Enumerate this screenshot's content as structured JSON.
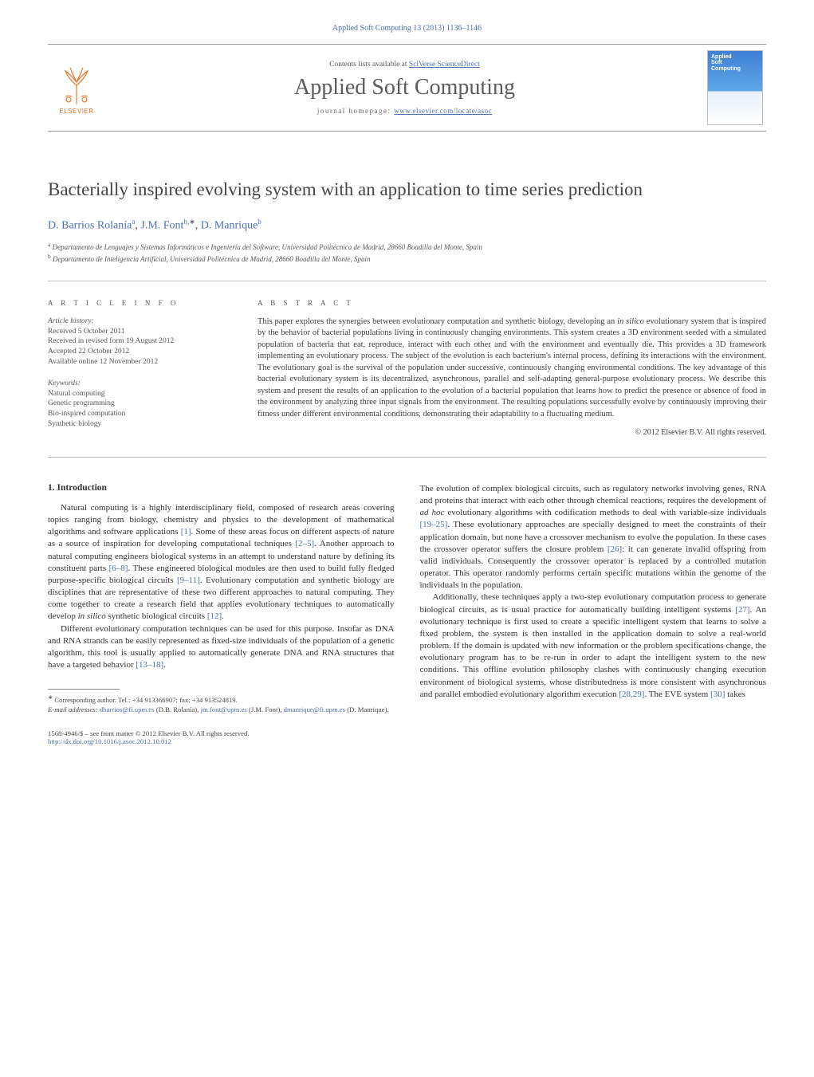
{
  "header": {
    "citation": "Applied Soft Computing 13 (2013) 1136–1146",
    "contents_prefix": "Contents lists available at ",
    "contents_link": "SciVerse ScienceDirect",
    "journal_name": "Applied Soft Computing",
    "homepage_prefix": "journal homepage: ",
    "homepage_url": "www.elsevier.com/locate/asoc",
    "publisher_name": "ELSEVIER",
    "cover_text": "Applied\nSoft\nComputing"
  },
  "article": {
    "title": "Bacterially inspired evolving system with an application to time series prediction",
    "authors_html": "D. Barrios Rolanía|a|, J.M. Font|b,*|, D. Manrique|b",
    "authors": [
      {
        "name": "D. Barrios Rolanía",
        "sup": "a"
      },
      {
        "name": "J.M. Font",
        "sup": "b,",
        "star": true
      },
      {
        "name": "D. Manrique",
        "sup": "b"
      }
    ],
    "affiliations": [
      {
        "sup": "a",
        "text": "Departamento de Lenguajes y Sistemas Informáticos e Ingeniería del Software, Universidad Politécnica de Madrid, 28660 Boadilla del Monte, Spain"
      },
      {
        "sup": "b",
        "text": "Departamento de Inteligencia Artificial, Universidad Politécnica de Madrid, 28660 Boadilla del Monte, Spain"
      }
    ]
  },
  "info": {
    "heading": "A R T I C L E   I N F O",
    "history_title": "Article history:",
    "history": [
      "Received 5 October 2011",
      "Received in revised form 19 August 2012",
      "Accepted 22 October 2012",
      "Available online 12 November 2012"
    ],
    "keywords_title": "Keywords:",
    "keywords": [
      "Natural computing",
      "Genetic programming",
      "Bio-inspired computation",
      "Synthetic biology"
    ]
  },
  "abstract": {
    "heading": "A B S T R A C T",
    "text": "This paper explores the synergies between evolutionary computation and synthetic biology, developing an in silico evolutionary system that is inspired by the behavior of bacterial populations living in continuously changing environments. This system creates a 3D environment seeded with a simulated population of bacteria that eat, reproduce, interact with each other and with the environment and eventually die. This provides a 3D framework implementing an evolutionary process. The subject of the evolution is each bacterium's internal process, defining its interactions with the environment. The evolutionary goal is the survival of the population under successive, continuously changing environmental conditions. The key advantage of this bacterial evolutionary system is its decentralized, asynchronous, parallel and self-adapting general-purpose evolutionary process. We describe this system and present the results of an application to the evolution of a bacterial population that learns how to predict the presence or absence of food in the environment by analyzing three input signals from the environment. The resulting populations successfully evolve by continuously improving their fitness under different environmental conditions, demonstrating their adaptability to a fluctuating medium.",
    "copyright": "© 2012 Elsevier B.V. All rights reserved."
  },
  "body": {
    "section_heading": "1.  Introduction",
    "left_paras": [
      "Natural computing is a highly interdisciplinary field, composed of research areas covering topics ranging from biology, chemistry and physics to the development of mathematical algorithms and software applications [1]. Some of these areas focus on different aspects of nature as a source of inspiration for developing computational techniques [2–5]. Another approach to natural computing engineers biological systems in an attempt to understand nature by defining its constituent parts [6–8]. These engineered biological modules are then used to build fully fledged purpose-specific biological circuits [9–11]. Evolutionary computation and synthetic biology are disciplines that are representative of these two different approaches to natural computing. They come together to create a research field that applies evolutionary techniques to automatically develop in silico synthetic biological circuits [12].",
      "Different evolutionary computation techniques can be used for this purpose. Insofar as DNA and RNA strands can be easily represented as fixed-size individuals of the population of a genetic algorithm, this tool is usually applied to automatically generate DNA and RNA structures that have a targeted behavior [13–18]."
    ],
    "right_paras": [
      "The evolution of complex biological circuits, such as regulatory networks involving genes, RNA and proteins that interact with each other through chemical reactions, requires the development of ad hoc evolutionary algorithms with codification methods to deal with variable-size individuals [19–25]. These evolutionary approaches are specially designed to meet the constraints of their application domain, but none have a crossover mechanism to evolve the population. In these cases the crossover operator suffers the closure problem [26]: it can generate invalid offspring from valid individuals. Consequently the crossover operator is replaced by a controlled mutation operator. This operator randomly performs certain specific mutations within the genome of the individuals in the population.",
      "Additionally, these techniques apply a two-step evolutionary computation process to generate biological circuits, as is usual practice for automatically building intelligent systems [27]. An evolutionary technique is first used to create a specific intelligent system that learns to solve a fixed problem, the system is then installed in the application domain to solve a real-world problem. If the domain is updated with new information or the problem specifications change, the evolutionary program has to be re-run in order to adapt the intelligent system to the new conditions. This offline evolution philosophy clashes with continuously changing execution environment of biological systems, whose distributedness is more consistent with asynchronous and parallel embodied evolutionary algorithm execution [28,29]. The EVE system [30] takes"
    ],
    "refs_left": [
      "[1]",
      "[2–5]",
      "[6–8]",
      "[9–11]",
      "[12]",
      "[13–18]"
    ],
    "refs_right": [
      "[19–25]",
      "[26]",
      "[27]",
      "[28,29]",
      "[30]"
    ]
  },
  "footnotes": {
    "corr": "Corresponding author. Tel.: +34 913366907; fax: +34 913524819.",
    "email_label": "E-mail addresses:",
    "emails": [
      {
        "addr": "dbarrios@fi.upm.es",
        "who": "(D.B. Rolanía)"
      },
      {
        "addr": "jm.font@upm.es",
        "who": "(J.M. Font)"
      },
      {
        "addr": "dmanrique@fi.upm.es",
        "who": "(D. Manrique)."
      }
    ]
  },
  "bottom": {
    "line1": "1568-4946/$ – see front matter © 2012 Elsevier B.V. All rights reserved.",
    "doi": "http://dx.doi.org/10.1016/j.asoc.2012.10.012"
  },
  "colors": {
    "link": "#4a6fb5",
    "text": "#3a3a3a",
    "rule": "#bbbbbb",
    "elsevier_orange": "#e36f1e"
  }
}
